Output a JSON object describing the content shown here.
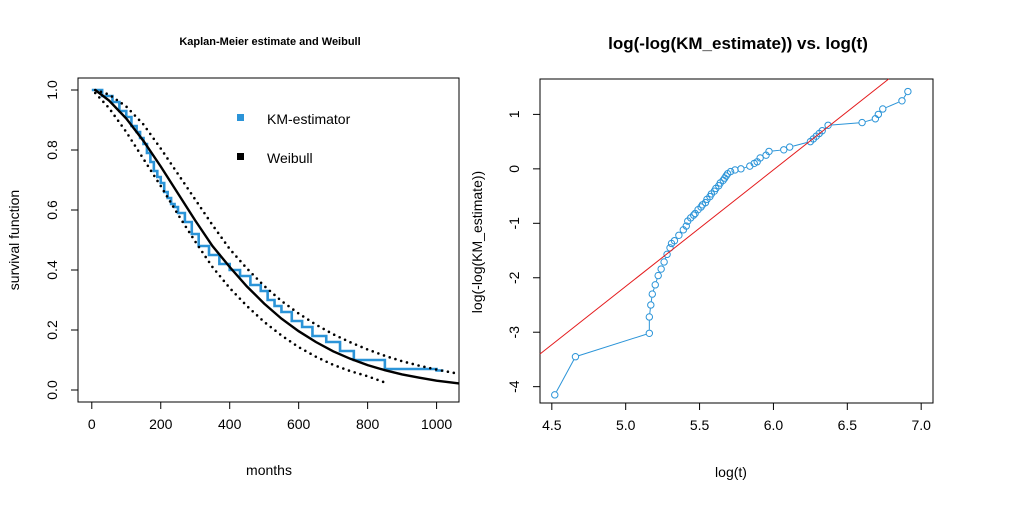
{
  "chart_data": [
    {
      "type": "line",
      "title": "Kaplan-Meier estimate and Weibull",
      "xlabel": "months",
      "ylabel": "survival function",
      "xlim": [
        -40,
        1065
      ],
      "ylim": [
        -0.04,
        1.04
      ],
      "xticks": [
        0,
        200,
        400,
        600,
        800,
        1000
      ],
      "yticks": [
        0.0,
        0.2,
        0.4,
        0.6,
        0.8,
        1.0
      ],
      "xtick_labels": [
        "0",
        "200",
        "400",
        "600",
        "800",
        "1000"
      ],
      "ytick_labels": [
        "0.0",
        "0.2",
        "0.4",
        "0.6",
        "0.8",
        "1.0"
      ],
      "legend": {
        "placement": "top-right",
        "items": [
          {
            "label": "KM-estimator",
            "color": "#2b94d8"
          },
          {
            "label": "Weibull",
            "color": "#000000"
          }
        ]
      },
      "series": [
        {
          "name": "KM-estimator",
          "style": "step",
          "color": "#2b94d8",
          "x": [
            0,
            30,
            60,
            80,
            100,
            115,
            130,
            140,
            150,
            160,
            170,
            180,
            190,
            200,
            210,
            220,
            230,
            240,
            250,
            270,
            290,
            310,
            340,
            370,
            400,
            430,
            460,
            490,
            510,
            530,
            550,
            580,
            610,
            640,
            680,
            720,
            760,
            850,
            1000,
            1020
          ],
          "y": [
            1.0,
            0.98,
            0.96,
            0.93,
            0.91,
            0.88,
            0.86,
            0.84,
            0.82,
            0.79,
            0.76,
            0.73,
            0.71,
            0.69,
            0.66,
            0.64,
            0.62,
            0.61,
            0.59,
            0.56,
            0.52,
            0.48,
            0.45,
            0.42,
            0.4,
            0.38,
            0.35,
            0.33,
            0.3,
            0.28,
            0.26,
            0.23,
            0.21,
            0.18,
            0.16,
            0.13,
            0.1,
            0.07,
            0.065,
            0.065
          ]
        },
        {
          "name": "Weibull",
          "style": "solid",
          "color": "#000000",
          "x": [
            10,
            50,
            100,
            150,
            200,
            250,
            300,
            350,
            400,
            450,
            500,
            550,
            600,
            650,
            700,
            750,
            800,
            850,
            900,
            950,
            1000,
            1065
          ],
          "y": [
            1.0,
            0.965,
            0.905,
            0.83,
            0.745,
            0.655,
            0.565,
            0.48,
            0.41,
            0.345,
            0.288,
            0.238,
            0.196,
            0.16,
            0.129,
            0.104,
            0.083,
            0.066,
            0.052,
            0.041,
            0.031,
            0.022
          ]
        },
        {
          "name": "Weibull upper CI",
          "style": "dotted",
          "color": "#000000",
          "x": [
            10,
            50,
            100,
            150,
            200,
            250,
            300,
            350,
            400,
            450,
            500,
            550,
            600,
            650,
            700,
            750,
            800,
            850,
            900,
            950,
            1000,
            1065
          ],
          "y": [
            1.0,
            0.985,
            0.945,
            0.885,
            0.805,
            0.72,
            0.635,
            0.55,
            0.47,
            0.405,
            0.347,
            0.297,
            0.255,
            0.218,
            0.186,
            0.159,
            0.135,
            0.114,
            0.096,
            0.081,
            0.068,
            0.054
          ]
        },
        {
          "name": "Weibull lower CI",
          "style": "dotted",
          "color": "#000000",
          "x": [
            10,
            50,
            100,
            150,
            200,
            250,
            300,
            350,
            400,
            450,
            500,
            550,
            600,
            650,
            700,
            750,
            800,
            850
          ],
          "y": [
            0.99,
            0.94,
            0.86,
            0.77,
            0.68,
            0.585,
            0.495,
            0.41,
            0.34,
            0.28,
            0.227,
            0.182,
            0.143,
            0.111,
            0.084,
            0.063,
            0.046,
            0.025
          ]
        }
      ]
    },
    {
      "type": "scatter",
      "title": "log(-log(KM_estimate)) vs. log(t)",
      "xlabel": "log(t)",
      "ylabel": "log(-log(KM_estimate))",
      "xlim": [
        4.42,
        7.08
      ],
      "ylim": [
        -4.3,
        1.65
      ],
      "xticks": [
        4.5,
        5.0,
        5.5,
        6.0,
        6.5,
        7.0
      ],
      "yticks": [
        -4,
        -3,
        -2,
        -1,
        0,
        1
      ],
      "xtick_labels": [
        "4.5",
        "5.0",
        "5.5",
        "6.0",
        "6.5",
        "7.0"
      ],
      "ytick_labels": [
        "-4",
        "-3",
        "-2",
        "-1",
        "0",
        "1"
      ],
      "series": [
        {
          "name": "log(-log(KM_estimate))",
          "style": "points-connected",
          "color": "#2b94d8",
          "x": [
            4.52,
            4.66,
            5.16,
            5.16,
            5.17,
            5.18,
            5.2,
            5.22,
            5.24,
            5.26,
            5.28,
            5.3,
            5.31,
            5.33,
            5.36,
            5.39,
            5.41,
            5.42,
            5.44,
            5.46,
            5.47,
            5.49,
            5.51,
            5.52,
            5.54,
            5.55,
            5.57,
            5.58,
            5.6,
            5.61,
            5.63,
            5.64,
            5.66,
            5.67,
            5.68,
            5.69,
            5.71,
            5.74,
            5.78,
            5.84,
            5.87,
            5.89,
            5.91,
            5.95,
            5.97,
            6.07,
            6.11,
            6.25,
            6.27,
            6.29,
            6.31,
            6.33,
            6.37,
            6.6,
            6.69,
            6.71,
            6.74,
            6.87,
            6.91
          ],
          "y": [
            -4.15,
            -3.45,
            -3.02,
            -2.72,
            -2.5,
            -2.3,
            -2.13,
            -1.96,
            -1.84,
            -1.71,
            -1.57,
            -1.45,
            -1.37,
            -1.32,
            -1.22,
            -1.12,
            -1.05,
            -0.96,
            -0.9,
            -0.85,
            -0.82,
            -0.75,
            -0.7,
            -0.66,
            -0.62,
            -0.56,
            -0.51,
            -0.46,
            -0.41,
            -0.36,
            -0.31,
            -0.26,
            -0.21,
            -0.17,
            -0.13,
            -0.09,
            -0.05,
            -0.02,
            0.0,
            0.05,
            0.1,
            0.13,
            0.2,
            0.25,
            0.32,
            0.35,
            0.4,
            0.5,
            0.55,
            0.6,
            0.65,
            0.7,
            0.8,
            0.85,
            0.92,
            1.0,
            1.1,
            1.25,
            1.42
          ]
        },
        {
          "name": "reference line",
          "style": "solid",
          "color": "#e41a1c",
          "x": [
            4.42,
            6.78
          ],
          "y": [
            -3.4,
            1.65
          ]
        }
      ]
    }
  ]
}
